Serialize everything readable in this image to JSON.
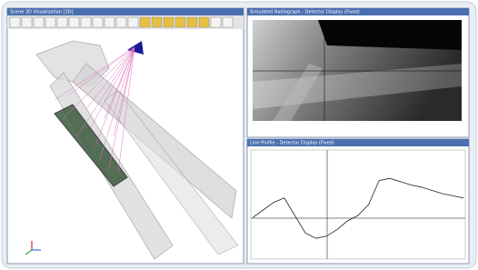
{
  "windows": [
    {
      "title": "Scene 3D Visualization [3D]"
    },
    {
      "title": "Simulated Radiograph - Detector Display (Fixed)"
    },
    {
      "title": "Line Profile - Detector Display (Fixed)"
    }
  ],
  "profile": {
    "values": [
      38,
      45,
      52,
      56,
      40,
      24,
      19,
      21,
      27,
      35,
      40,
      50,
      72,
      74,
      71,
      68,
      66,
      63,
      60,
      58,
      56
    ],
    "ylim": [
      0,
      100
    ]
  }
}
